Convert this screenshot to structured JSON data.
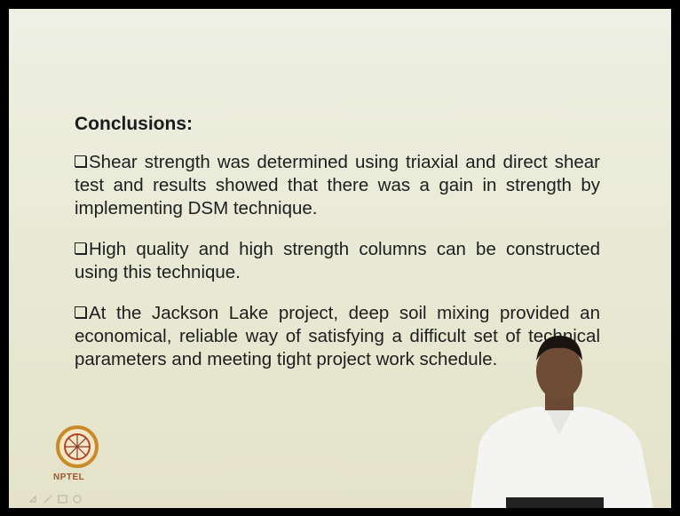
{
  "slide": {
    "heading": "Conclusions:",
    "bullets": [
      "Shear strength was determined using triaxial and direct shear test and results showed that there was a gain in strength by implementing DSM technique.",
      "High quality and high strength columns can be constructed using this technique.",
      "At the Jackson Lake project, deep soil mixing provided an economical, reliable way of satisfying a difficult set of technical parameters and meeting tight project work schedule."
    ],
    "logo": "NPTEL"
  }
}
